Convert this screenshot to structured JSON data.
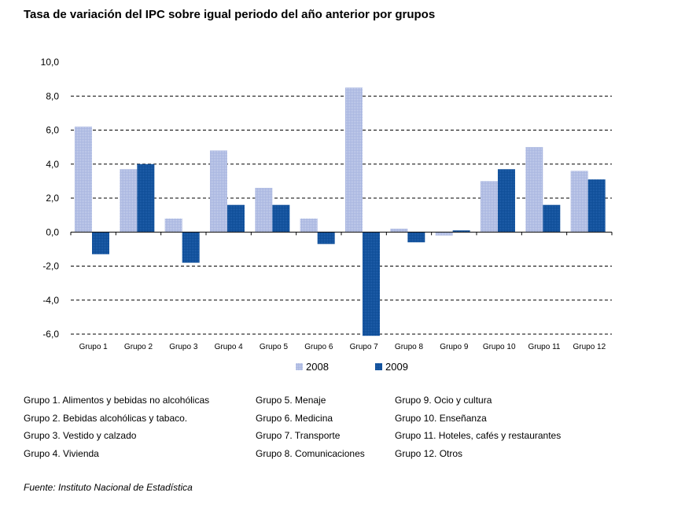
{
  "title": "Tasa de variación del IPC sobre igual periodo del año anterior por grupos",
  "chart_data": {
    "type": "bar",
    "categories": [
      "Grupo 1",
      "Grupo 2",
      "Grupo 3",
      "Grupo 4",
      "Grupo 5",
      "Grupo 6",
      "Grupo 7",
      "Grupo 8",
      "Grupo 9",
      "Grupo 10",
      "Grupo 11",
      "Grupo 12"
    ],
    "series": [
      {
        "name": "2008",
        "color": "#a9b6e0",
        "values": [
          6.2,
          3.7,
          0.8,
          4.8,
          2.6,
          0.8,
          8.5,
          0.2,
          -0.2,
          3.0,
          5.0,
          3.6
        ]
      },
      {
        "name": "2009",
        "color": "#0e4d97",
        "values": [
          -1.3,
          4.0,
          -1.8,
          1.6,
          1.6,
          -0.7,
          -6.1,
          -0.6,
          0.1,
          3.7,
          1.6,
          3.1
        ]
      }
    ],
    "ylim": [
      -6.0,
      10.0
    ],
    "yticks": [
      "10,0",
      "8,0",
      "6,0",
      "4,0",
      "2,0",
      "0,0",
      "-2,0",
      "-4,0",
      "-6,0"
    ],
    "ytick_values": [
      10,
      8,
      6,
      4,
      2,
      0,
      -2,
      -4,
      -6
    ],
    "grid": "dashed horizontal",
    "legend": "bottom-center",
    "xlabel": "",
    "ylabel": ""
  },
  "notes": [
    [
      "Grupo 1. Alimentos y bebidas no alcohólicas",
      "Grupo 2. Bebidas alcohólicas y  tabaco.",
      "Grupo 3. Vestido y calzado",
      "Grupo 4. Vivienda"
    ],
    [
      "Grupo 5. Menaje",
      "Grupo 6. Medicina",
      "Grupo 7. Transporte",
      "Grupo 8. Comunicaciones"
    ],
    [
      "Grupo 9. Ocio y cultura",
      "Grupo 10. Enseñanza",
      "Grupo 11. Hoteles, cafés y restaurantes",
      "Grupo 12. Otros"
    ]
  ],
  "source": "Fuente: Instituto Nacional de Estadística"
}
